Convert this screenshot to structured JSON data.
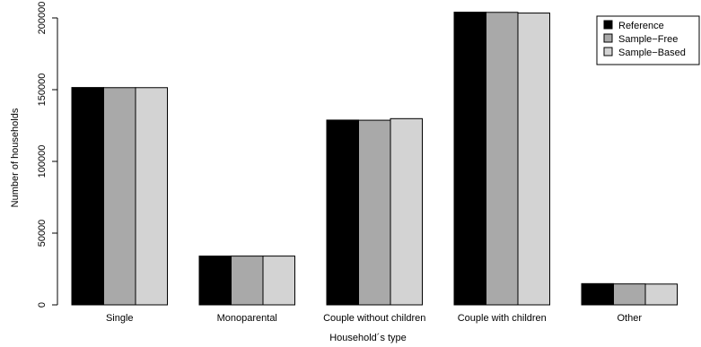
{
  "chart_data": {
    "type": "bar",
    "title": "",
    "xlabel": "Household´s type",
    "ylabel": "Number of households",
    "categories": [
      "Single",
      "Monoparental",
      "Couple without children",
      "Couple with children",
      "Other"
    ],
    "series": [
      {
        "name": "Reference",
        "color": "#000000",
        "values": [
          151500,
          34000,
          128800,
          204000,
          14800
        ]
      },
      {
        "name": "Sample−Free",
        "color": "#a9a9a9",
        "values": [
          151400,
          34000,
          128700,
          203900,
          14600
        ]
      },
      {
        "name": "Sample−Based",
        "color": "#d3d3d3",
        "values": [
          151400,
          34000,
          129800,
          203400,
          14500
        ]
      }
    ],
    "ylim": [
      0,
      200000
    ],
    "yticks": [
      "0",
      "50000",
      "100000",
      "150000",
      "200000"
    ],
    "grid": false,
    "legend_position": "top-right"
  }
}
